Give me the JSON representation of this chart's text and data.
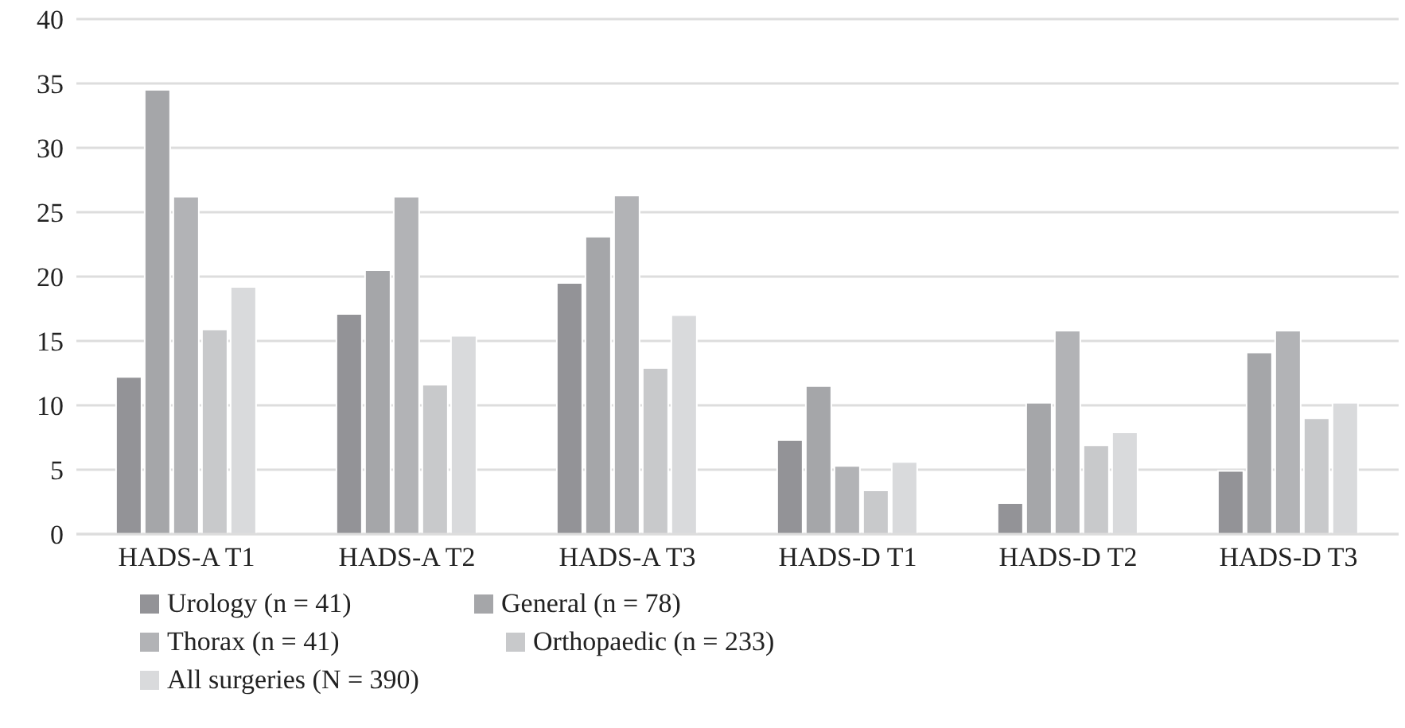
{
  "chart_data": {
    "type": "bar",
    "categories": [
      "HADS-A T1",
      "HADS-A T2",
      "HADS-A T3",
      "HADS-D T1",
      "HADS-D T2",
      "HADS-D T3"
    ],
    "series": [
      {
        "name": "Urology (n = 41)",
        "color": "#939397",
        "values": [
          12.2,
          17.1,
          19.5,
          7.3,
          2.4,
          4.9
        ]
      },
      {
        "name": "General (n = 78)",
        "color": "#a5a6a9",
        "values": [
          34.5,
          20.5,
          23.1,
          11.5,
          10.2,
          14.1
        ]
      },
      {
        "name": "Thorax (n = 41)",
        "color": "#b2b3b6",
        "values": [
          26.2,
          26.2,
          26.3,
          5.3,
          15.8,
          15.8
        ]
      },
      {
        "name": "Orthopaedic (n = 233)",
        "color": "#c8c9cb",
        "values": [
          15.9,
          11.6,
          12.9,
          3.4,
          6.9,
          9.0
        ]
      },
      {
        "name": "All surgeries (N = 390)",
        "color": "#d9dadc",
        "values": [
          19.2,
          15.4,
          17.0,
          5.6,
          7.9,
          10.2
        ]
      }
    ],
    "ylim": [
      0,
      40
    ],
    "yticks": [
      0,
      5,
      10,
      15,
      20,
      25,
      30,
      35,
      40
    ],
    "grid": "y",
    "legend": "bottom"
  }
}
